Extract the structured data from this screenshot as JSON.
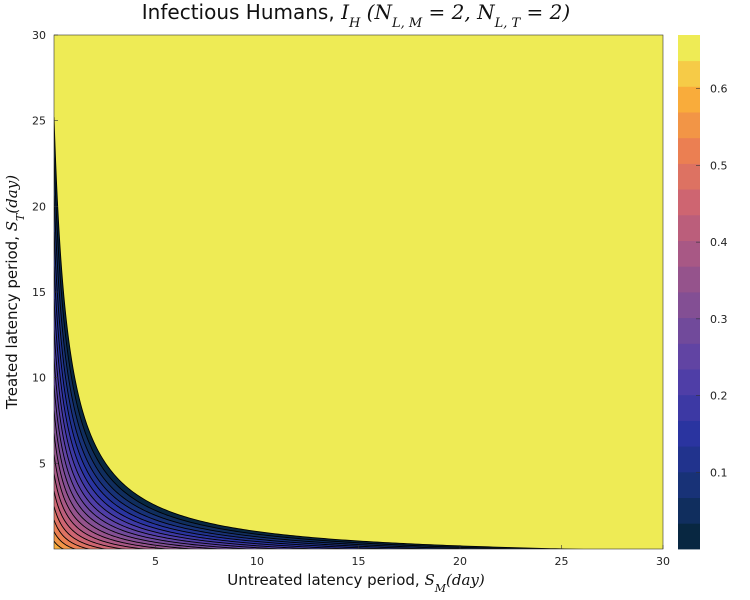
{
  "chart_data": {
    "type": "contour",
    "title": "Infectious Humans, ",
    "title_math": "I_H (N_{L,M} = 2, N_{L,T} = 2)",
    "title_math_display": [
      "I",
      "H",
      " (N",
      "L, M",
      " = 2, N",
      "L, T",
      " = 2)"
    ],
    "xlabel": "Untreated latency period, ",
    "xlabel_math": [
      "S",
      "M",
      "(day)"
    ],
    "ylabel": "Treated latency period, ",
    "ylabel_math": [
      "S",
      "T",
      "(day)"
    ],
    "xlim": [
      0,
      30
    ],
    "ylim": [
      0,
      30
    ],
    "x_ticks": [
      "5",
      "10",
      "15",
      "20",
      "25",
      "30"
    ],
    "y_ticks": [
      "5",
      "10",
      "15",
      "20",
      "25",
      "30"
    ],
    "colorbar": {
      "range": [
        0,
        0.67
      ],
      "ticks": [
        "0.1",
        "0.2",
        "0.3",
        "0.4",
        "0.5",
        "0.6"
      ],
      "levels": 20,
      "colormap": "thermal"
    },
    "contours": [
      {
        "level": 0.0335,
        "c": 0.0
      },
      {
        "level": 0.067,
        "c": 0.2
      },
      {
        "level": 0.1005,
        "c": 0.4
      },
      {
        "level": 0.134,
        "c": 0.6
      },
      {
        "level": 0.1675,
        "c": 0.8
      },
      {
        "level": 0.201,
        "c": 1.0
      },
      {
        "level": 0.2345,
        "c": 1.2
      },
      {
        "level": 0.268,
        "c": 1.4
      },
      {
        "level": 0.3015,
        "c": 1.6
      },
      {
        "level": 0.335,
        "c": 1.8
      },
      {
        "level": 0.3685,
        "c": 2.0
      },
      {
        "level": 0.402,
        "c": 2.2
      },
      {
        "level": 0.4355,
        "c": 2.4
      },
      {
        "level": 0.469,
        "c": 2.6
      },
      {
        "level": 0.5025,
        "c": 2.8
      },
      {
        "level": 0.536,
        "c": 3.0
      },
      {
        "level": 0.5695,
        "c": 3.2
      },
      {
        "level": 0.603,
        "c": 3.4
      },
      {
        "level": 0.6365,
        "c": 3.6
      }
    ],
    "grid": false
  }
}
